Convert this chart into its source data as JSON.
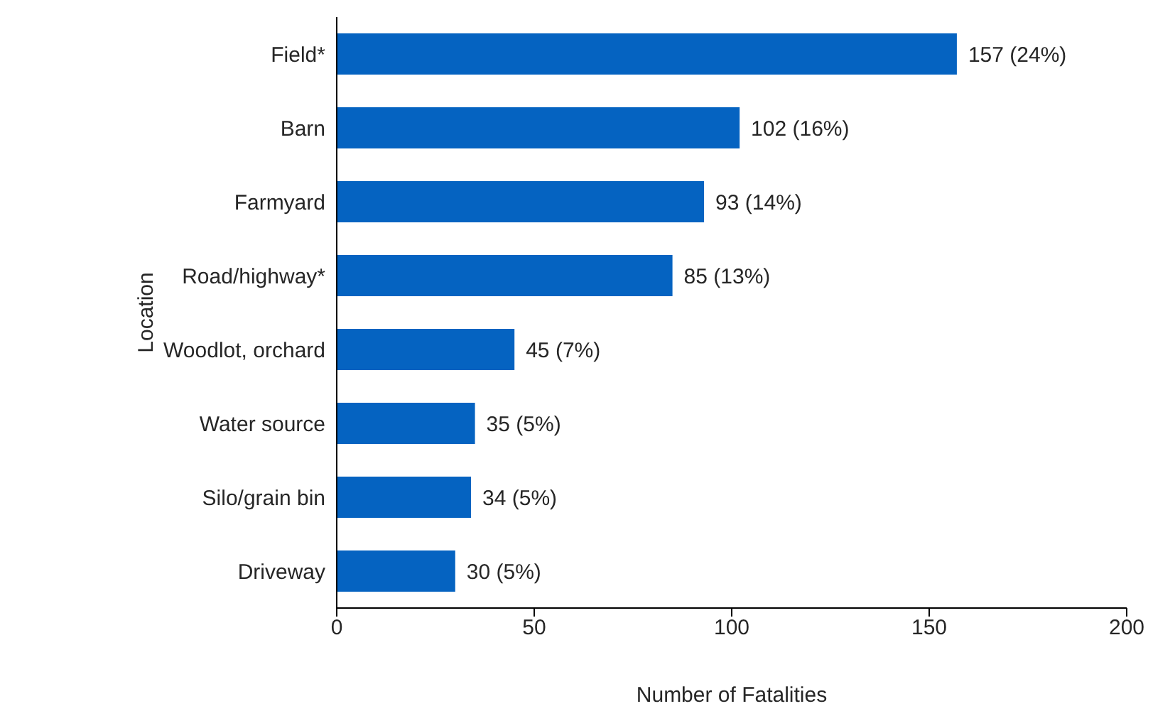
{
  "chart_data": {
    "type": "bar",
    "orientation": "horizontal",
    "xlabel": "Number of Fatalities",
    "ylabel": "Location",
    "categories": [
      "Field*",
      "Barn",
      "Farmyard",
      "Road/highway*",
      "Woodlot, orchard",
      "Water source",
      "Silo/grain bin",
      "Driveway"
    ],
    "values": [
      157,
      102,
      93,
      85,
      45,
      35,
      34,
      30
    ],
    "value_labels": [
      "157 (24%)",
      "102 (16%)",
      "93 (14%)",
      "85 (13%)",
      "45 (7%)",
      "35 (5%)",
      "34 (5%)",
      "30 (5%)"
    ],
    "color": "#0563c1",
    "xlim": [
      0,
      200
    ],
    "xticks": [
      0,
      50,
      100,
      150,
      200
    ]
  }
}
